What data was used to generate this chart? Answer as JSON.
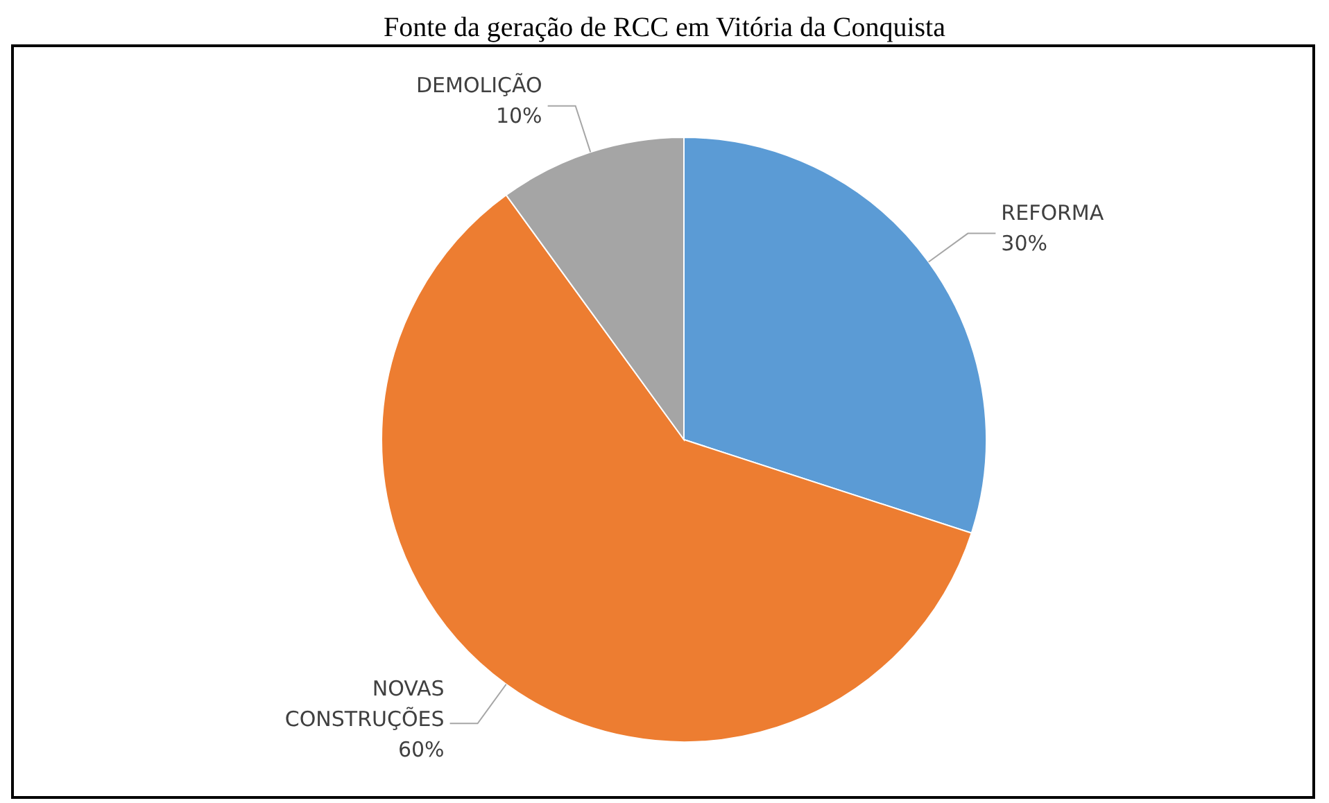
{
  "chart_data": {
    "type": "pie",
    "title": "Fonte da geração de RCC em Vitória da Conquista",
    "categories": [
      "REFORMA",
      "NOVAS CONSTRUÇÕES",
      "DEMOLIÇÃO"
    ],
    "values": [
      30,
      60,
      10
    ],
    "colors": [
      "#5b9bd5",
      "#ed7d31",
      "#a5a5a5"
    ],
    "value_labels": [
      "30%",
      "60%",
      "10%"
    ],
    "legend": false
  }
}
